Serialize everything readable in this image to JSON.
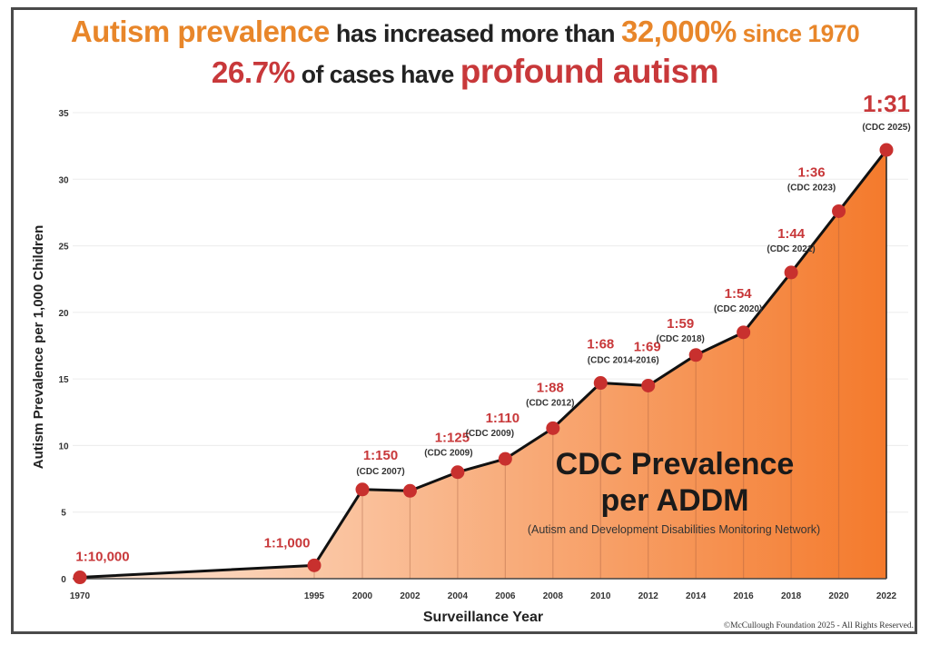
{
  "headline": {
    "line1": [
      {
        "text": "Autism prevalence",
        "style": "orange"
      },
      {
        "text": " has increased more than ",
        "style": "dark"
      },
      {
        "text": "32,000%",
        "style": "orange"
      },
      {
        "text": " since 1970",
        "style": "orange-small"
      }
    ],
    "line2": [
      {
        "text": "26.7%",
        "style": "red"
      },
      {
        "text": " of cases have ",
        "style": "dark"
      },
      {
        "text": "profound autism",
        "style": "red"
      }
    ]
  },
  "chart_data": {
    "type": "area",
    "title": "Autism prevalence has increased more than 32,000% since 1970 — 26.7% of cases have profound autism",
    "xlabel": "Surveillance Year",
    "ylabel": "Autism Prevalence per 1,000 Children",
    "ylim": [
      0,
      35
    ],
    "yticks": [
      0,
      5,
      10,
      15,
      20,
      25,
      30,
      35
    ],
    "grid": true,
    "categories": [
      "1970",
      "1995",
      "2000",
      "2002",
      "2004",
      "2006",
      "2008",
      "2010",
      "2012",
      "2014",
      "2016",
      "2018",
      "2020",
      "2022"
    ],
    "series": [
      {
        "name": "CDC Prevalence per ADDM",
        "values": [
          0.1,
          1.0,
          6.7,
          6.6,
          8.0,
          9.0,
          11.3,
          14.7,
          14.5,
          16.8,
          18.5,
          23.0,
          27.6,
          32.2
        ]
      }
    ],
    "point_labels": [
      {
        "ratio": "1:10,000",
        "source": ""
      },
      {
        "ratio": "1:1,000",
        "source": ""
      },
      {
        "ratio": "1:150",
        "source": "(CDC 2007)"
      },
      {
        "ratio": "",
        "source": ""
      },
      {
        "ratio": "1:125",
        "source": "(CDC 2009)"
      },
      {
        "ratio": "1:110",
        "source": "(CDC 2009)"
      },
      {
        "ratio": "1:88",
        "source": "(CDC 2012)"
      },
      {
        "ratio": "1:68",
        "source": "(CDC 2014-2016)"
      },
      {
        "ratio": "1:69",
        "source": ""
      },
      {
        "ratio": "1:59",
        "source": "(CDC 2018)"
      },
      {
        "ratio": "1:54",
        "source": "(CDC 2020)"
      },
      {
        "ratio": "1:44",
        "source": "(CDC 2021)"
      },
      {
        "ratio": "1:36",
        "source": "(CDC 2023)"
      },
      {
        "ratio": "1:31",
        "source": "(CDC 2025)"
      }
    ],
    "annotation": {
      "title_line1": "CDC Prevalence",
      "title_line2": "per ADDM",
      "subtitle": "(Autism and Development Disabilities Monitoring Network)"
    },
    "colors": {
      "fill_start": "#fde6d6",
      "fill_end": "#f47a2c",
      "line": "#111111",
      "marker": "#c8302e",
      "ratio_text": "#c8383a"
    }
  },
  "footer": {
    "copyright": "©McCullough Foundation 2025 - All Rights Reserved."
  }
}
